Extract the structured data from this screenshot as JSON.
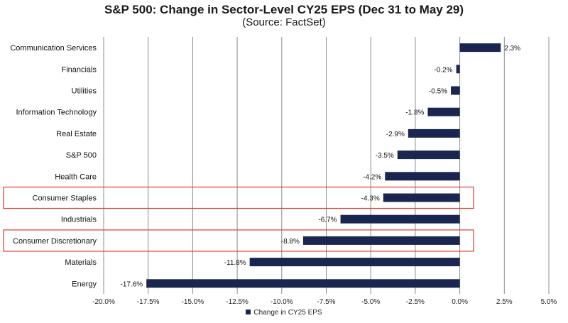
{
  "title": "S&P 500: Change in Sector-Level CY25 EPS (Dec 31 to May 29)",
  "subtitle": "(Source: FactSet)",
  "colors": {
    "bar": "#1a2550",
    "grid": "#8c8c8c",
    "highlight": "#e03a2f"
  },
  "chart_data": {
    "type": "bar",
    "orientation": "horizontal",
    "categories": [
      "Communication Services",
      "Financials",
      "Utilities",
      "Information Technology",
      "Real Estate",
      "S&P 500",
      "Health Care",
      "Consumer Staples",
      "Industrials",
      "Consumer Discretionary",
      "Materials",
      "Energy"
    ],
    "values": [
      2.3,
      -0.2,
      -0.5,
      -1.8,
      -2.9,
      -3.5,
      -4.2,
      -4.3,
      -6.7,
      -8.8,
      -11.8,
      -17.6
    ],
    "data_labels": [
      "2.3%",
      "-0.2%",
      "-0.5%",
      "-1.8%",
      "-2.9%",
      "-3.5%",
      "-4.2%",
      "-4.3%",
      "-6.7%",
      "-8.8%",
      "-11.8%",
      "-17.6%"
    ],
    "xlim": [
      -20,
      5
    ],
    "xticks": [
      -20,
      -17.5,
      -15,
      -12.5,
      -10,
      -7.5,
      -5,
      -2.5,
      0,
      2.5,
      5
    ],
    "xtick_labels": [
      "-20.0%",
      "-17.5%",
      "-15.0%",
      "-12.5%",
      "-10.0%",
      "-7.5%",
      "-5.0%",
      "-2.5%",
      "0.0%",
      "2.5%",
      "5.0%"
    ],
    "grid": "vertical",
    "legend": {
      "placement": "bottom",
      "label": "Change in CY25 EPS"
    },
    "highlighted_categories": [
      "Consumer Staples",
      "Consumer Discretionary"
    ]
  }
}
